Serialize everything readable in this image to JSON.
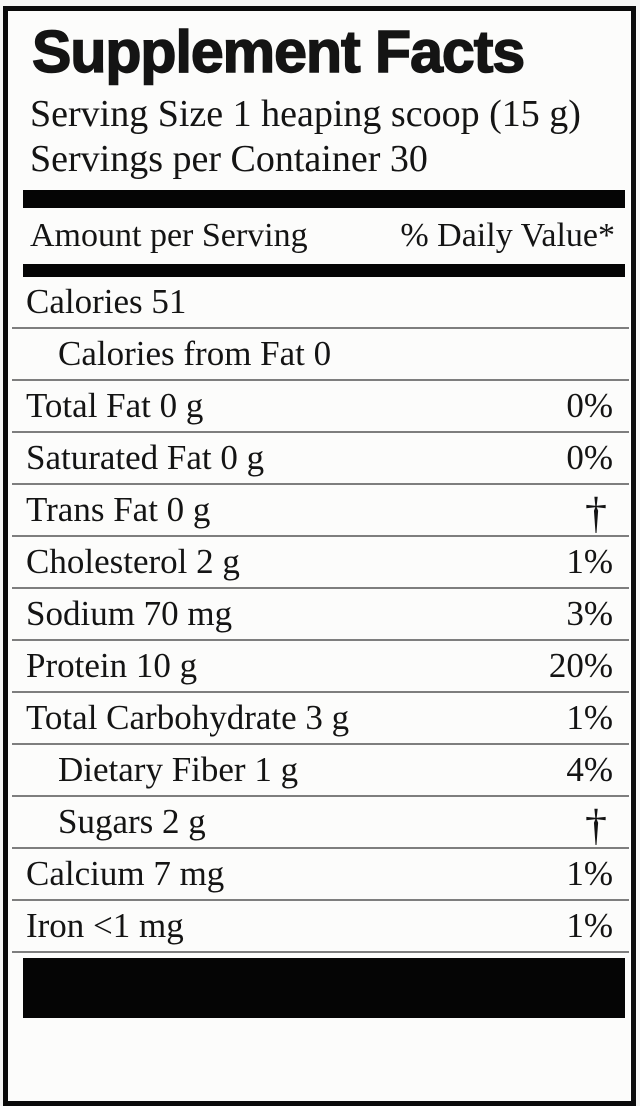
{
  "label": {
    "title": "Supplement Facts",
    "serving": {
      "size": "Serving Size 1 heaping scoop (15 g)",
      "per_container": "Servings per Container 30"
    },
    "header": {
      "amount": "Amount per Serving",
      "daily_value": "% Daily Value*"
    },
    "rows": [
      {
        "name": "Calories 51",
        "value": "",
        "indent": false
      },
      {
        "name": "Calories from Fat 0",
        "value": "",
        "indent": true
      },
      {
        "name": "Total Fat 0 g",
        "value": "0%",
        "indent": false
      },
      {
        "name": "Saturated Fat 0 g",
        "value": "0%",
        "indent": false
      },
      {
        "name": "Trans Fat 0 g",
        "value": "†",
        "indent": false
      },
      {
        "name": "Cholesterol 2 g",
        "value": "1%",
        "indent": false
      },
      {
        "name": "Sodium 70 mg",
        "value": "3%",
        "indent": false
      },
      {
        "name": "Protein 10 g",
        "value": "20%",
        "indent": false
      },
      {
        "name": "Total Carbohydrate 3 g",
        "value": "1%",
        "indent": false
      },
      {
        "name": "Dietary Fiber 1 g",
        "value": "4%",
        "indent": true
      },
      {
        "name": "Sugars 2 g",
        "value": "†",
        "indent": true
      },
      {
        "name": "Calcium 7 mg",
        "value": "1%",
        "indent": false
      },
      {
        "name": "Iron <1 mg",
        "value": "1%",
        "indent": false
      }
    ],
    "colors": {
      "text": "#141414",
      "bar": "#050505",
      "border": "#0a0a0a",
      "underline": "#7e7e7e",
      "label_background": "#fcfcfb",
      "page_background": "#f5f5f4"
    }
  }
}
